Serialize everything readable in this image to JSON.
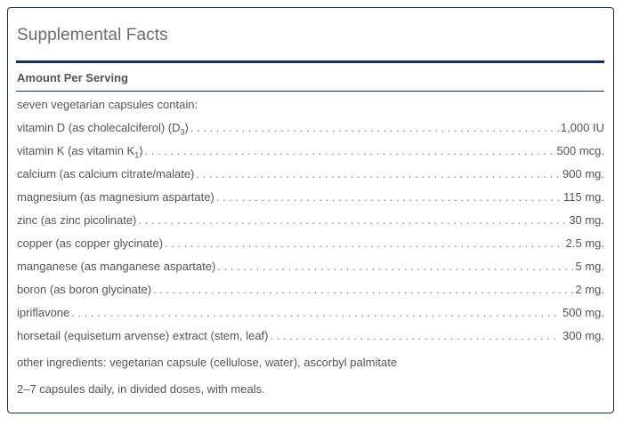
{
  "title": "Supplemental Facts",
  "amount_per_serving": "Amount Per Serving",
  "serving_intro": "seven vegetarian capsules contain:",
  "ingredients": [
    {
      "name_pre": "vitamin D (as cholecalciferol) (D",
      "name_sub": "3",
      "name_post": ")",
      "amount": "1,000 IU"
    },
    {
      "name_pre": "vitamin K (as vitamin K",
      "name_sub": "1",
      "name_post": ")",
      "amount": "500 mcg."
    },
    {
      "name_pre": "calcium (as calcium citrate/malate)",
      "name_sub": "",
      "name_post": "",
      "amount": "900 mg."
    },
    {
      "name_pre": "magnesium (as magnesium aspartate)",
      "name_sub": "",
      "name_post": "",
      "amount": "115 mg."
    },
    {
      "name_pre": "zinc (as zinc picolinate)",
      "name_sub": "",
      "name_post": "",
      "amount": "30 mg."
    },
    {
      "name_pre": "copper (as copper glycinate)",
      "name_sub": "",
      "name_post": "",
      "amount": "2.5 mg."
    },
    {
      "name_pre": "manganese (as manganese aspartate)",
      "name_sub": "",
      "name_post": "",
      "amount": "5 mg."
    },
    {
      "name_pre": "boron (as boron glycinate)",
      "name_sub": "",
      "name_post": "",
      "amount": "2 mg."
    },
    {
      "name_pre": "ipriflavone",
      "name_sub": "",
      "name_post": "",
      "amount": "500 mg."
    },
    {
      "name_pre": "horsetail (equisetum arvense) extract (stem, leaf)",
      "name_sub": "",
      "name_post": "",
      "amount": "300 mg."
    }
  ],
  "other_ingredients": "other ingredients: vegetarian capsule (cellulose, water), ascorbyl palmitate",
  "directions": "2–7 capsules daily, in divided doses, with meals.",
  "colors": {
    "border": "#1f2a5a",
    "rule": "#1a2a66",
    "text": "#555555"
  }
}
